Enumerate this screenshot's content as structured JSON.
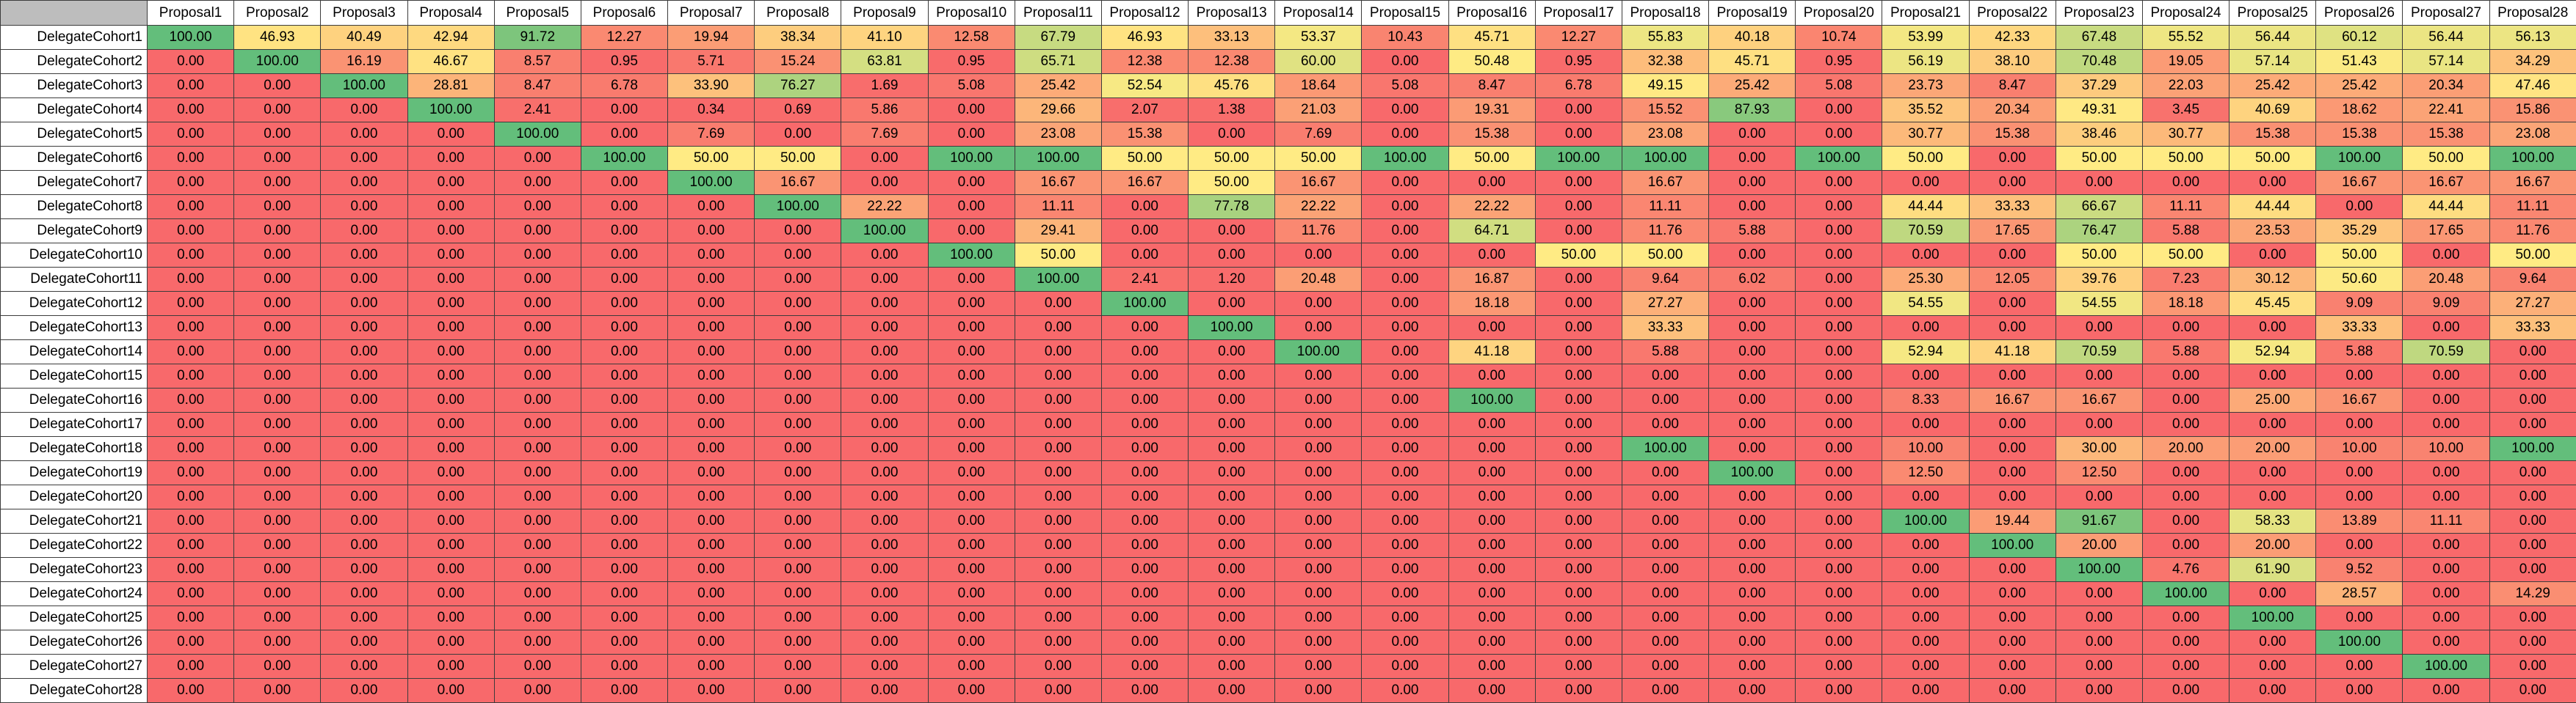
{
  "chart_data": {
    "type": "heatmap",
    "columns": [
      "Proposal1",
      "Proposal2",
      "Proposal3",
      "Proposal4",
      "Proposal5",
      "Proposal6",
      "Proposal7",
      "Proposal8",
      "Proposal9",
      "Proposal10",
      "Proposal11",
      "Proposal12",
      "Proposal13",
      "Proposal14",
      "Proposal15",
      "Proposal16",
      "Proposal17",
      "Proposal18",
      "Proposal19",
      "Proposal20",
      "Proposal21",
      "Proposal22",
      "Proposal23",
      "Proposal24",
      "Proposal25",
      "Proposal26",
      "Proposal27",
      "Proposal28"
    ],
    "rows": [
      "DelegateCohort1",
      "DelegateCohort2",
      "DelegateCohort3",
      "DelegateCohort4",
      "DelegateCohort5",
      "DelegateCohort6",
      "DelegateCohort7",
      "DelegateCohort8",
      "DelegateCohort9",
      "DelegateCohort10",
      "DelegateCohort11",
      "DelegateCohort12",
      "DelegateCohort13",
      "DelegateCohort14",
      "DelegateCohort15",
      "DelegateCohort16",
      "DelegateCohort17",
      "DelegateCohort18",
      "DelegateCohort19",
      "DelegateCohort20",
      "DelegateCohort21",
      "DelegateCohort22",
      "DelegateCohort23",
      "DelegateCohort24",
      "DelegateCohort25",
      "DelegateCohort26",
      "DelegateCohort27",
      "DelegateCohort28"
    ],
    "values": [
      [
        100.0,
        46.93,
        40.49,
        42.94,
        91.72,
        12.27,
        19.94,
        38.34,
        41.1,
        12.58,
        67.79,
        46.93,
        33.13,
        53.37,
        10.43,
        45.71,
        12.27,
        55.83,
        40.18,
        10.74,
        53.99,
        42.33,
        67.48,
        55.52,
        56.44,
        60.12,
        56.44,
        56.13
      ],
      [
        0,
        100.0,
        16.19,
        46.67,
        8.57,
        0.95,
        5.71,
        15.24,
        63.81,
        0.95,
        65.71,
        12.38,
        12.38,
        60.0,
        0,
        50.48,
        0.95,
        32.38,
        45.71,
        0.95,
        56.19,
        38.1,
        70.48,
        19.05,
        57.14,
        51.43,
        57.14,
        34.29
      ],
      [
        0,
        0,
        100.0,
        28.81,
        8.47,
        6.78,
        33.9,
        76.27,
        1.69,
        5.08,
        25.42,
        52.54,
        45.76,
        18.64,
        5.08,
        8.47,
        6.78,
        49.15,
        25.42,
        5.08,
        23.73,
        8.47,
        37.29,
        22.03,
        25.42,
        25.42,
        20.34,
        47.46
      ],
      [
        0,
        0,
        0,
        100.0,
        2.41,
        0,
        0.34,
        0.69,
        5.86,
        0,
        29.66,
        2.07,
        1.38,
        21.03,
        0,
        19.31,
        0,
        15.52,
        87.93,
        0,
        35.52,
        20.34,
        49.31,
        3.45,
        40.69,
        18.62,
        22.41,
        15.86
      ],
      [
        0,
        0,
        0,
        0,
        100.0,
        0,
        7.69,
        0,
        7.69,
        0,
        23.08,
        15.38,
        0,
        7.69,
        0,
        15.38,
        0,
        23.08,
        0,
        0,
        30.77,
        15.38,
        38.46,
        30.77,
        15.38,
        15.38,
        15.38,
        23.08
      ],
      [
        0,
        0,
        0,
        0,
        0,
        100.0,
        50.0,
        50.0,
        0,
        100.0,
        100.0,
        50.0,
        50.0,
        50.0,
        100.0,
        50.0,
        100.0,
        100.0,
        0,
        100.0,
        50.0,
        0,
        50.0,
        50.0,
        50.0,
        100.0,
        50.0,
        100.0
      ],
      [
        0,
        0,
        0,
        0,
        0,
        0,
        100.0,
        16.67,
        0,
        0,
        16.67,
        16.67,
        50.0,
        16.67,
        0,
        0,
        0,
        16.67,
        0,
        0,
        0,
        0,
        0,
        0,
        0,
        16.67,
        16.67,
        16.67
      ],
      [
        0,
        0,
        0,
        0,
        0,
        0,
        0,
        100.0,
        22.22,
        0,
        11.11,
        0,
        77.78,
        22.22,
        0,
        22.22,
        0,
        11.11,
        0,
        0,
        44.44,
        33.33,
        66.67,
        11.11,
        44.44,
        0,
        44.44,
        11.11
      ],
      [
        0,
        0,
        0,
        0,
        0,
        0,
        0,
        0,
        100.0,
        0,
        29.41,
        0,
        0,
        11.76,
        0,
        64.71,
        0,
        11.76,
        5.88,
        0,
        70.59,
        17.65,
        76.47,
        5.88,
        23.53,
        35.29,
        17.65,
        11.76
      ],
      [
        0,
        0,
        0,
        0,
        0,
        0,
        0,
        0,
        0,
        100.0,
        50.0,
        0,
        0,
        0,
        0,
        0,
        50.0,
        50.0,
        0,
        0,
        0,
        0,
        50.0,
        50.0,
        0,
        50.0,
        0,
        50.0
      ],
      [
        0,
        0,
        0,
        0,
        0,
        0,
        0,
        0,
        0,
        0,
        100.0,
        2.41,
        1.2,
        20.48,
        0,
        16.87,
        0,
        9.64,
        6.02,
        0,
        25.3,
        12.05,
        39.76,
        7.23,
        30.12,
        50.6,
        20.48,
        9.64
      ],
      [
        0,
        0,
        0,
        0,
        0,
        0,
        0,
        0,
        0,
        0,
        0,
        100.0,
        0,
        0,
        0,
        18.18,
        0,
        27.27,
        0,
        0,
        54.55,
        0,
        54.55,
        18.18,
        45.45,
        9.09,
        9.09,
        27.27
      ],
      [
        0,
        0,
        0,
        0,
        0,
        0,
        0,
        0,
        0,
        0,
        0,
        0,
        100.0,
        0,
        0,
        0,
        0,
        33.33,
        0,
        0,
        0,
        0,
        0,
        0,
        0,
        33.33,
        0,
        33.33
      ],
      [
        0,
        0,
        0,
        0,
        0,
        0,
        0,
        0,
        0,
        0,
        0,
        0,
        0,
        100.0,
        0,
        41.18,
        0,
        5.88,
        0,
        0,
        52.94,
        41.18,
        70.59,
        5.88,
        52.94,
        5.88,
        70.59,
        0
      ],
      [
        0,
        0,
        0,
        0,
        0,
        0,
        0,
        0,
        0,
        0,
        0,
        0,
        0,
        0,
        0,
        0,
        0,
        0,
        0,
        0,
        0,
        0,
        0,
        0,
        0,
        0,
        0,
        0
      ],
      [
        0,
        0,
        0,
        0,
        0,
        0,
        0,
        0,
        0,
        0,
        0,
        0,
        0,
        0,
        0,
        100.0,
        0,
        0,
        0,
        0,
        8.33,
        16.67,
        16.67,
        0,
        25.0,
        16.67,
        0,
        0
      ],
      [
        0,
        0,
        0,
        0,
        0,
        0,
        0,
        0,
        0,
        0,
        0,
        0,
        0,
        0,
        0,
        0,
        0,
        0,
        0,
        0,
        0,
        0,
        0,
        0,
        0,
        0,
        0,
        0
      ],
      [
        0,
        0,
        0,
        0,
        0,
        0,
        0,
        0,
        0,
        0,
        0,
        0,
        0,
        0,
        0,
        0,
        0,
        100.0,
        0,
        0,
        10.0,
        0,
        30.0,
        20.0,
        20.0,
        10.0,
        10.0,
        100.0
      ],
      [
        0,
        0,
        0,
        0,
        0,
        0,
        0,
        0,
        0,
        0,
        0,
        0,
        0,
        0,
        0,
        0,
        0,
        0,
        100.0,
        0,
        12.5,
        0,
        12.5,
        0,
        0,
        0,
        0,
        0
      ],
      [
        0,
        0,
        0,
        0,
        0,
        0,
        0,
        0,
        0,
        0,
        0,
        0,
        0,
        0,
        0,
        0,
        0,
        0,
        0,
        0,
        0,
        0,
        0,
        0,
        0,
        0,
        0,
        0
      ],
      [
        0,
        0,
        0,
        0,
        0,
        0,
        0,
        0,
        0,
        0,
        0,
        0,
        0,
        0,
        0,
        0,
        0,
        0,
        0,
        0,
        100.0,
        19.44,
        91.67,
        0,
        58.33,
        13.89,
        11.11,
        0
      ],
      [
        0,
        0,
        0,
        0,
        0,
        0,
        0,
        0,
        0,
        0,
        0,
        0,
        0,
        0,
        0,
        0,
        0,
        0,
        0,
        0,
        0,
        100.0,
        20.0,
        0,
        20.0,
        0,
        0,
        0
      ],
      [
        0,
        0,
        0,
        0,
        0,
        0,
        0,
        0,
        0,
        0,
        0,
        0,
        0,
        0,
        0,
        0,
        0,
        0,
        0,
        0,
        0,
        0,
        100.0,
        4.76,
        61.9,
        9.52,
        0,
        0
      ],
      [
        0,
        0,
        0,
        0,
        0,
        0,
        0,
        0,
        0,
        0,
        0,
        0,
        0,
        0,
        0,
        0,
        0,
        0,
        0,
        0,
        0,
        0,
        0,
        100.0,
        0,
        28.57,
        0,
        14.29
      ],
      [
        0,
        0,
        0,
        0,
        0,
        0,
        0,
        0,
        0,
        0,
        0,
        0,
        0,
        0,
        0,
        0,
        0,
        0,
        0,
        0,
        0,
        0,
        0,
        0,
        100.0,
        0,
        0,
        0
      ],
      [
        0,
        0,
        0,
        0,
        0,
        0,
        0,
        0,
        0,
        0,
        0,
        0,
        0,
        0,
        0,
        0,
        0,
        0,
        0,
        0,
        0,
        0,
        0,
        0,
        0,
        100.0,
        0,
        0
      ],
      [
        0,
        0,
        0,
        0,
        0,
        0,
        0,
        0,
        0,
        0,
        0,
        0,
        0,
        0,
        0,
        0,
        0,
        0,
        0,
        0,
        0,
        0,
        0,
        0,
        0,
        0,
        100.0,
        0
      ],
      [
        0,
        0,
        0,
        0,
        0,
        0,
        0,
        0,
        0,
        0,
        0,
        0,
        0,
        0,
        0,
        0,
        0,
        0,
        0,
        0,
        0,
        0,
        0,
        0,
        0,
        0,
        0,
        0
      ]
    ],
    "value_range": [
      0,
      100
    ],
    "decimals": 2,
    "color_scale": {
      "low": "#F8696B",
      "mid": "#FFEB84",
      "high": "#63BE7B"
    }
  }
}
